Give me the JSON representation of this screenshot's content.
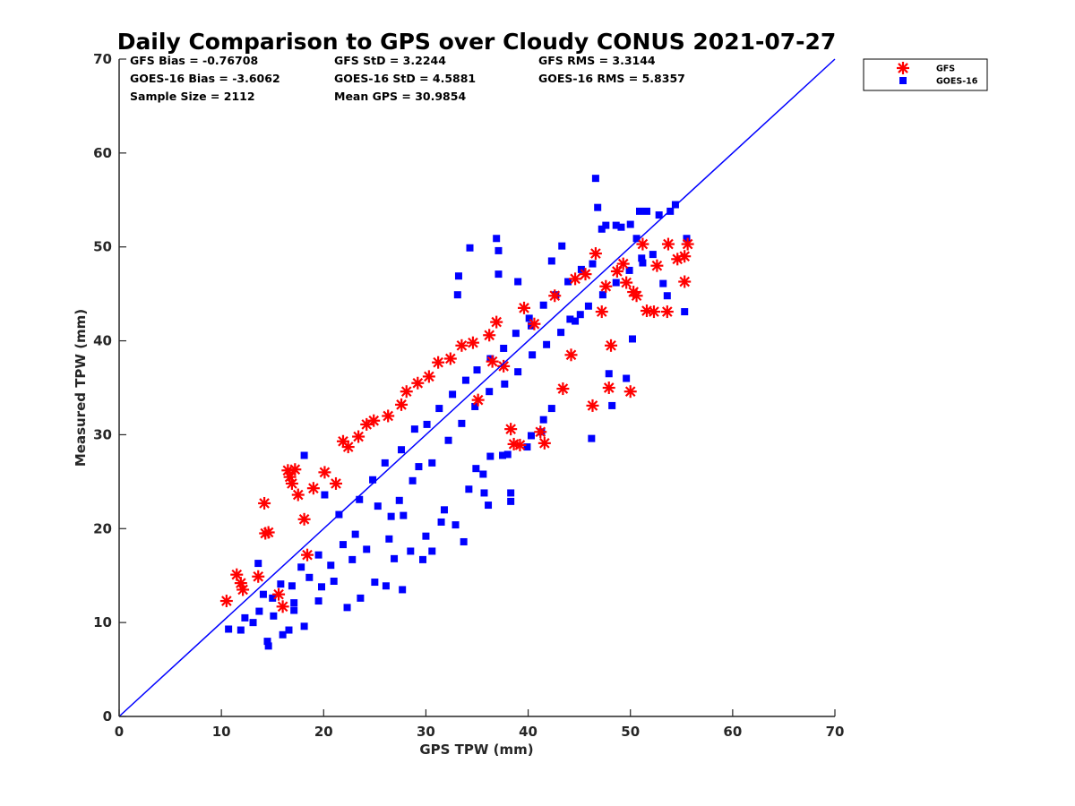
{
  "chart_data": {
    "type": "scatter",
    "title": "Daily Comparison to GPS over Cloudy CONUS 2021-07-27",
    "xlabel": "GPS TPW (mm)",
    "ylabel": "Measured TPW (mm)",
    "xlim": [
      0,
      70
    ],
    "ylim": [
      0,
      70
    ],
    "xticks": [
      "0",
      "10",
      "20",
      "30",
      "40",
      "50",
      "60",
      "70"
    ],
    "yticks": [
      "0",
      "10",
      "20",
      "30",
      "40",
      "50",
      "60",
      "70"
    ],
    "grid": false,
    "legend_position": "outside-top-right",
    "stats": [
      "GFS Bias = -0.76708",
      "GFS StD = 3.2244",
      "GFS RMS = 3.3144",
      "GOES-16 Bias = -3.6062",
      "GOES-16 StD = 4.5881",
      "GOES-16 RMS = 5.8357",
      "Sample Size = 2112",
      "Mean GPS = 30.9854"
    ],
    "reference_line": {
      "from": [
        0,
        0
      ],
      "to": [
        70,
        70
      ],
      "color": "#0000ff"
    },
    "series": [
      {
        "name": "GFS",
        "marker": "asterisk",
        "color": "#ff0000",
        "points": [
          [
            10.5,
            12.3
          ],
          [
            11.5,
            15.1
          ],
          [
            11.9,
            14.2
          ],
          [
            12.1,
            13.5
          ],
          [
            13.6,
            14.9
          ],
          [
            14.2,
            22.7
          ],
          [
            14.3,
            19.5
          ],
          [
            14.6,
            19.6
          ],
          [
            15.6,
            13.0
          ],
          [
            16.0,
            11.7
          ],
          [
            16.5,
            26.2
          ],
          [
            16.7,
            25.5
          ],
          [
            17.2,
            26.3
          ],
          [
            16.9,
            24.8
          ],
          [
            17.5,
            23.6
          ],
          [
            18.1,
            21.0
          ],
          [
            18.4,
            17.2
          ],
          [
            19.0,
            24.3
          ],
          [
            20.1,
            26.0
          ],
          [
            21.2,
            24.8
          ],
          [
            21.9,
            29.3
          ],
          [
            22.4,
            28.7
          ],
          [
            23.4,
            29.8
          ],
          [
            24.2,
            31.1
          ],
          [
            24.9,
            31.5
          ],
          [
            26.3,
            32.0
          ],
          [
            27.6,
            33.2
          ],
          [
            28.1,
            34.6
          ],
          [
            29.2,
            35.5
          ],
          [
            30.3,
            36.2
          ],
          [
            31.2,
            37.7
          ],
          [
            32.4,
            38.1
          ],
          [
            33.5,
            39.5
          ],
          [
            34.6,
            39.8
          ],
          [
            35.1,
            33.7
          ],
          [
            36.2,
            40.6
          ],
          [
            36.5,
            37.8
          ],
          [
            36.9,
            42.0
          ],
          [
            37.6,
            37.3
          ],
          [
            38.3,
            30.6
          ],
          [
            38.6,
            29.0
          ],
          [
            39.2,
            28.9
          ],
          [
            39.6,
            43.5
          ],
          [
            40.6,
            41.8
          ],
          [
            41.2,
            30.3
          ],
          [
            41.6,
            29.1
          ],
          [
            42.6,
            44.8
          ],
          [
            43.4,
            34.9
          ],
          [
            44.2,
            38.5
          ],
          [
            44.6,
            46.6
          ],
          [
            45.6,
            47.1
          ],
          [
            46.3,
            33.1
          ],
          [
            46.6,
            49.3
          ],
          [
            47.2,
            43.1
          ],
          [
            47.6,
            45.8
          ],
          [
            47.9,
            35.0
          ],
          [
            48.1,
            39.5
          ],
          [
            48.7,
            47.4
          ],
          [
            49.3,
            48.2
          ],
          [
            49.6,
            46.2
          ],
          [
            50.0,
            34.6
          ],
          [
            50.3,
            45.2
          ],
          [
            50.6,
            44.8
          ],
          [
            51.2,
            50.3
          ],
          [
            51.6,
            43.2
          ],
          [
            52.3,
            43.1
          ],
          [
            52.6,
            48.0
          ],
          [
            53.6,
            43.1
          ],
          [
            53.7,
            50.3
          ],
          [
            54.6,
            48.7
          ],
          [
            55.3,
            46.3
          ],
          [
            55.6,
            50.3
          ],
          [
            55.3,
            49.0
          ]
        ]
      },
      {
        "name": "GOES-16",
        "marker": "square",
        "color": "#0000ff",
        "points": [
          [
            10.7,
            9.3
          ],
          [
            11.9,
            9.2
          ],
          [
            12.3,
            10.5
          ],
          [
            13.1,
            10.0
          ],
          [
            13.7,
            11.2
          ],
          [
            14.5,
            8.0
          ],
          [
            14.6,
            7.5
          ],
          [
            15.1,
            10.7
          ],
          [
            16.0,
            8.7
          ],
          [
            16.6,
            9.2
          ],
          [
            17.1,
            11.3
          ],
          [
            18.1,
            9.6
          ],
          [
            19.5,
            12.3
          ],
          [
            21.0,
            14.4
          ],
          [
            22.3,
            11.6
          ],
          [
            23.6,
            12.6
          ],
          [
            25.0,
            14.3
          ],
          [
            26.1,
            13.9
          ],
          [
            26.9,
            16.8
          ],
          [
            27.7,
            13.5
          ],
          [
            28.5,
            17.6
          ],
          [
            29.7,
            16.7
          ],
          [
            30.6,
            17.6
          ],
          [
            31.5,
            20.7
          ],
          [
            32.9,
            20.4
          ],
          [
            33.7,
            18.6
          ],
          [
            34.2,
            24.2
          ],
          [
            35.6,
            25.8
          ],
          [
            36.3,
            27.7
          ],
          [
            37.5,
            27.8
          ],
          [
            38.0,
            27.9
          ],
          [
            38.3,
            22.9
          ],
          [
            38.3,
            23.8
          ],
          [
            39.9,
            28.7
          ],
          [
            40.3,
            29.9
          ],
          [
            41.3,
            30.3
          ],
          [
            41.5,
            31.6
          ],
          [
            42.3,
            32.8
          ],
          [
            33.1,
            44.9
          ],
          [
            33.2,
            46.9
          ],
          [
            34.3,
            49.9
          ],
          [
            36.9,
            50.9
          ],
          [
            37.1,
            49.6
          ],
          [
            37.1,
            47.1
          ],
          [
            39.0,
            46.3
          ],
          [
            40.3,
            41.6
          ],
          [
            42.3,
            48.5
          ],
          [
            43.3,
            50.1
          ],
          [
            44.1,
            42.3
          ],
          [
            45.1,
            42.8
          ],
          [
            46.2,
            29.6
          ],
          [
            46.6,
            57.3
          ],
          [
            46.8,
            54.2
          ],
          [
            47.2,
            51.9
          ],
          [
            47.6,
            52.3
          ],
          [
            47.9,
            36.5
          ],
          [
            48.2,
            33.1
          ],
          [
            48.6,
            52.3
          ],
          [
            49.1,
            52.1
          ],
          [
            49.6,
            36.0
          ],
          [
            50.0,
            52.4
          ],
          [
            50.2,
            40.2
          ],
          [
            50.6,
            50.9
          ],
          [
            50.9,
            53.8
          ],
          [
            51.2,
            48.3
          ],
          [
            51.6,
            53.8
          ],
          [
            52.2,
            49.2
          ],
          [
            52.8,
            53.4
          ],
          [
            53.2,
            46.1
          ],
          [
            53.6,
            44.8
          ],
          [
            53.9,
            53.8
          ],
          [
            54.4,
            54.5
          ],
          [
            55.3,
            43.1
          ],
          [
            55.5,
            50.9
          ],
          [
            36.1,
            22.5
          ],
          [
            34.9,
            26.4
          ],
          [
            35.7,
            23.8
          ],
          [
            31.8,
            22.0
          ],
          [
            30.0,
            19.2
          ],
          [
            28.7,
            25.1
          ],
          [
            27.4,
            23.0
          ],
          [
            26.6,
            21.3
          ],
          [
            25.3,
            22.4
          ],
          [
            24.2,
            17.8
          ],
          [
            23.1,
            19.4
          ],
          [
            21.9,
            18.3
          ],
          [
            20.7,
            16.1
          ],
          [
            19.5,
            17.2
          ],
          [
            18.6,
            14.8
          ],
          [
            17.8,
            15.9
          ],
          [
            16.9,
            13.9
          ],
          [
            15.8,
            14.1
          ],
          [
            15.0,
            12.6
          ],
          [
            14.1,
            13.0
          ],
          [
            13.6,
            16.3
          ],
          [
            18.1,
            27.8
          ],
          [
            20.1,
            23.6
          ],
          [
            21.5,
            21.5
          ],
          [
            23.5,
            23.1
          ],
          [
            24.8,
            25.2
          ],
          [
            26.0,
            27.0
          ],
          [
            27.6,
            28.4
          ],
          [
            28.9,
            30.6
          ],
          [
            30.1,
            31.1
          ],
          [
            31.3,
            32.8
          ],
          [
            32.6,
            34.3
          ],
          [
            33.9,
            35.8
          ],
          [
            35.0,
            36.9
          ],
          [
            36.3,
            38.1
          ],
          [
            37.6,
            39.2
          ],
          [
            38.8,
            40.8
          ],
          [
            40.1,
            42.4
          ],
          [
            41.5,
            43.8
          ],
          [
            42.7,
            44.9
          ],
          [
            43.9,
            46.3
          ],
          [
            45.2,
            47.6
          ],
          [
            46.3,
            48.2
          ],
          [
            29.3,
            26.6
          ],
          [
            27.8,
            21.4
          ],
          [
            26.4,
            18.9
          ],
          [
            22.8,
            16.7
          ],
          [
            19.8,
            13.8
          ],
          [
            17.1,
            12.1
          ],
          [
            30.6,
            27.0
          ],
          [
            32.2,
            29.4
          ],
          [
            33.5,
            31.2
          ],
          [
            34.8,
            33.0
          ],
          [
            36.2,
            34.6
          ],
          [
            37.7,
            35.4
          ],
          [
            39.0,
            36.7
          ],
          [
            40.4,
            38.5
          ],
          [
            41.8,
            39.6
          ],
          [
            43.2,
            40.9
          ],
          [
            44.6,
            42.1
          ],
          [
            45.9,
            43.7
          ],
          [
            47.3,
            44.9
          ],
          [
            48.6,
            46.2
          ],
          [
            49.9,
            47.5
          ],
          [
            51.1,
            48.8
          ]
        ]
      }
    ]
  }
}
